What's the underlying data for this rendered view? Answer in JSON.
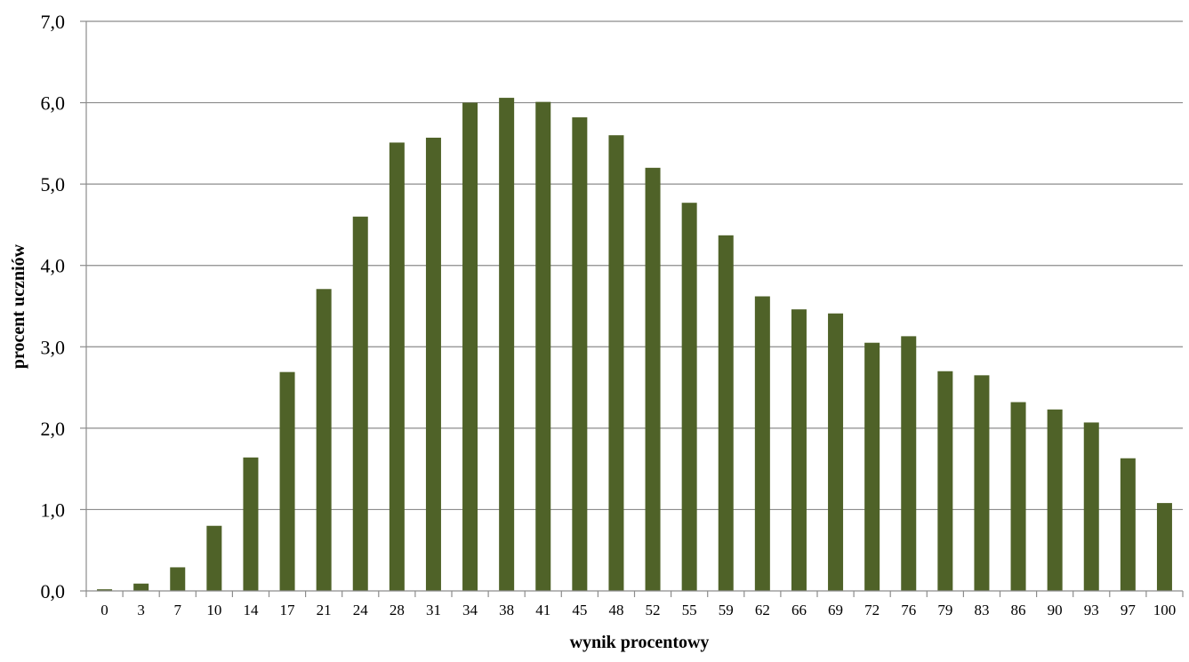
{
  "chart_data": {
    "type": "bar",
    "title": "",
    "xlabel": "wynik procentowy",
    "ylabel": "procent uczniów",
    "categories": [
      "0",
      "3",
      "7",
      "10",
      "14",
      "17",
      "21",
      "24",
      "28",
      "31",
      "34",
      "38",
      "41",
      "45",
      "48",
      "52",
      "55",
      "59",
      "62",
      "66",
      "69",
      "72",
      "76",
      "79",
      "83",
      "86",
      "90",
      "93",
      "97",
      "100"
    ],
    "values": [
      0.02,
      0.09,
      0.29,
      0.8,
      1.64,
      2.69,
      3.71,
      4.6,
      5.51,
      5.57,
      6.0,
      6.06,
      6.01,
      5.82,
      5.6,
      5.2,
      4.77,
      4.37,
      3.62,
      3.46,
      3.41,
      3.05,
      3.13,
      2.7,
      2.65,
      2.32,
      2.23,
      2.07,
      1.63,
      1.08
    ],
    "ylim": [
      0,
      7
    ],
    "yticks": [
      "0,0",
      "1,0",
      "2,0",
      "3,0",
      "4,0",
      "5,0",
      "6,0",
      "7,0"
    ],
    "grid": true,
    "legend": "none",
    "colors": {
      "bar": "#4f6228",
      "grid": "#8c8c8c",
      "axis": "#8c8c8c"
    }
  }
}
